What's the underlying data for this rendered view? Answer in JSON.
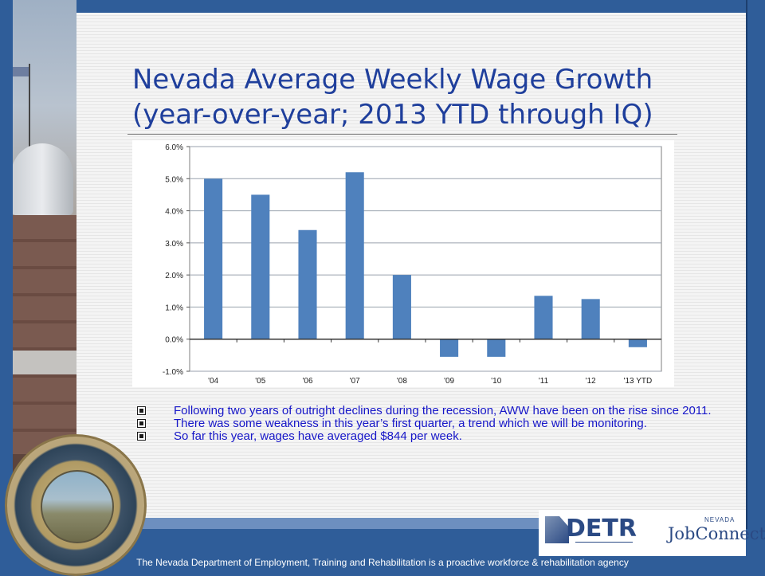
{
  "slide": {
    "title_line1": "Nevada Average Weekly Wage Growth",
    "title_line2": "(year-over-year; 2013 YTD through IQ)",
    "bullets": [
      "Following two years of outright declines during the recession, AWW have been on the rise since 2011.",
      "There was some weakness in this year’s first quarter, a trend which we will be monitoring.",
      "So far this year, wages have averaged $844 per week."
    ],
    "footer": "The Nevada Department of Employment, Training and Rehabilitation is a proactive workforce & rehabilitation agency"
  },
  "logos": {
    "detr": "DETR",
    "jobconnect_top": "NEVADA",
    "jobconnect": "JobConnect"
  },
  "colors": {
    "bar": "#4f81bd",
    "title": "#1f3f9c",
    "bullet_text": "#1616c8",
    "band": "#2f5d99"
  },
  "chart_data": {
    "type": "bar",
    "categories": [
      "'04",
      "'05",
      "'06",
      "'07",
      "'08",
      "'09",
      "'10",
      "'11",
      "'12",
      "'13 YTD"
    ],
    "values": [
      5.0,
      4.5,
      3.4,
      5.2,
      2.0,
      -0.55,
      -0.55,
      1.35,
      1.25,
      -0.25
    ],
    "ylim": [
      -1.0,
      6.0
    ],
    "yticks": [
      -1.0,
      0.0,
      1.0,
      2.0,
      3.0,
      4.0,
      5.0,
      6.0
    ],
    "ytick_labels": [
      "-1.0%",
      "0.0%",
      "1.0%",
      "2.0%",
      "3.0%",
      "4.0%",
      "5.0%",
      "6.0%"
    ],
    "grid": true,
    "legend": "none",
    "title": "",
    "xlabel": "",
    "ylabel": ""
  }
}
